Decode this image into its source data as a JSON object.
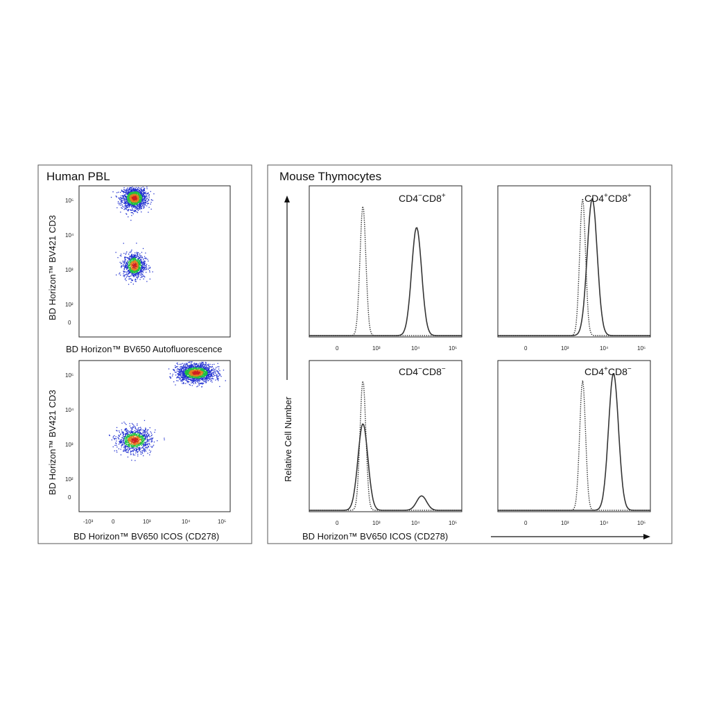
{
  "left_panel": {
    "title": "Human PBL",
    "ylabel": "BD Horizon™ BV421  CD3",
    "top_xlabel": "BD Horizon™ BV650  Autofluorescence",
    "bottom_xlabel": "BD Horizon™ BV650  ICOS (CD278)",
    "y_ticks": [
      "10⁵",
      "10⁴",
      "10³",
      "10²",
      "0"
    ],
    "x_ticks": [
      "-10³",
      "0",
      "10³",
      "10⁴",
      "10⁵"
    ]
  },
  "right_panel": {
    "title": "Mouse Thymocytes",
    "ylabel": "Relative Cell Number",
    "xlabel": "BD Horizon™ BV650  ICOS (CD278)",
    "x_ticks": [
      "0",
      "10³",
      "10⁴",
      "10⁵"
    ]
  },
  "colors": {
    "density_low": "#2030d0",
    "density_mid": "#20c040",
    "density_high": "#e08020",
    "density_peak": "#d02020",
    "curve": "#333333"
  },
  "chart_data": [
    {
      "type": "scatter",
      "panel": "Human PBL (top)",
      "xlabel": "BD Horizon™ BV650  Autofluorescence",
      "ylabel": "BD Horizon™ BV421  CD3",
      "scale": "logicle",
      "populations": [
        {
          "name": "",
          "x_center": 0,
          "y_center": 50000,
          "relative_size": 0.55
        },
        {
          "name": "",
          "x_center": 0,
          "y_center": 100,
          "relative_size": 0.4
        }
      ]
    },
    {
      "type": "scatter",
      "panel": "Human PBL (bottom)",
      "xlabel": "BD Horizon™ BV650  ICOS (CD278)",
      "ylabel": "BD Horizon™ BV421  CD3",
      "scale": "logicle",
      "xlim": [
        -1000,
        100000
      ],
      "populations": [
        {
          "name": "",
          "x_center": 4000,
          "y_center": 50000,
          "relative_size": 0.6
        },
        {
          "name": "",
          "x_center": 0,
          "y_center": 100,
          "relative_size": 0.4
        }
      ]
    },
    {
      "type": "line",
      "panel": "CD4⁻CD8⁺",
      "label_parts": [
        "CD4",
        "−",
        "CD8",
        "+"
      ],
      "xlabel": "BD Horizon™ BV650  ICOS (CD278)",
      "ylabel": "Relative Cell Number",
      "scale": "logicle",
      "series": [
        {
          "style": "solid",
          "peaks": [
            {
              "x": 1500,
              "height": 0.75
            }
          ]
        },
        {
          "style": "dotted",
          "peaks": [
            {
              "x": 0,
              "height": 0.9
            }
          ]
        }
      ]
    },
    {
      "type": "line",
      "panel": "CD4⁺CD8⁺",
      "label_parts": [
        "CD4",
        "+",
        "CD8",
        "+"
      ],
      "xlabel": "BD Horizon™ BV650  ICOS (CD278)",
      "ylabel": "Relative Cell Number",
      "scale": "logicle",
      "series": [
        {
          "style": "solid",
          "peaks": [
            {
              "x": 400,
              "height": 0.95
            }
          ]
        },
        {
          "style": "dotted",
          "peaks": [
            {
              "x": 150,
              "height": 0.95
            }
          ]
        }
      ]
    },
    {
      "type": "line",
      "panel": "CD4⁻CD8⁻",
      "label_parts": [
        "CD4",
        "−",
        "CD8",
        "−"
      ],
      "xlabel": "BD Horizon™ BV650  ICOS (CD278)",
      "ylabel": "Relative Cell Number",
      "scale": "logicle",
      "series": [
        {
          "style": "solid",
          "peaks": [
            {
              "x": 0,
              "height": 0.6
            },
            {
              "x": 2500,
              "height": 0.1
            }
          ]
        },
        {
          "style": "dotted",
          "peaks": [
            {
              "x": 0,
              "height": 0.9
            }
          ]
        }
      ]
    },
    {
      "type": "line",
      "panel": "CD4⁺CD8⁻",
      "label_parts": [
        "CD4",
        "+",
        "CD8",
        "−"
      ],
      "xlabel": "BD Horizon™ BV650  ICOS (CD278)",
      "ylabel": "Relative Cell Number",
      "scale": "logicle",
      "series": [
        {
          "style": "solid",
          "peaks": [
            {
              "x": 3500,
              "height": 0.95
            }
          ]
        },
        {
          "style": "dotted",
          "peaks": [
            {
              "x": 150,
              "height": 0.9
            }
          ]
        }
      ]
    }
  ]
}
